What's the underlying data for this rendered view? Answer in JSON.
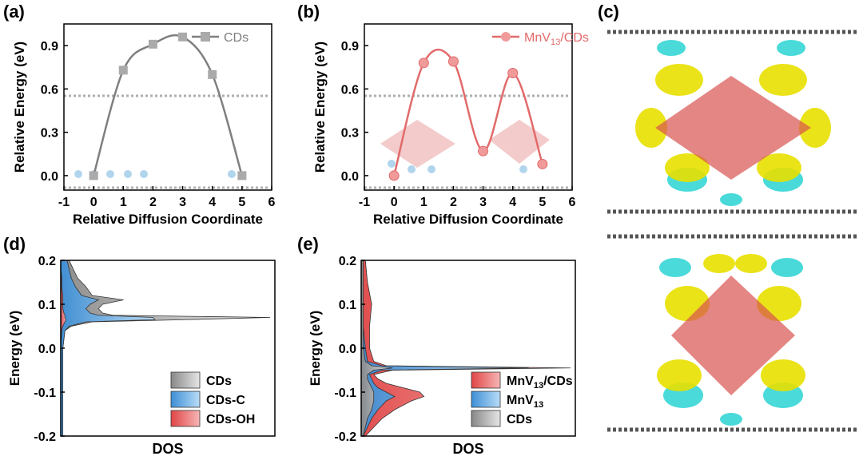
{
  "panels": [
    {
      "id": "a",
      "label": "(a)"
    },
    {
      "id": "b",
      "label": "(b)"
    },
    {
      "id": "c",
      "label": "(c)"
    },
    {
      "id": "d",
      "label": "(d)"
    },
    {
      "id": "e",
      "label": "(e)"
    }
  ],
  "colors": {
    "gray": "#7f7f7f",
    "red": "#e26a6a",
    "blue": "#5aa9e6",
    "yellow": "#e8e000",
    "cyan": "#2ad3d3"
  },
  "chart_data": [
    {
      "id": "a",
      "type": "line",
      "title": "",
      "xlabel": "Relative Diffusion Coordinate",
      "ylabel": "Relative Energy (eV)",
      "xlim": [
        -1,
        6
      ],
      "ylim": [
        -0.1,
        1.05
      ],
      "xticks": [
        -1,
        0,
        1,
        2,
        3,
        4,
        5,
        6
      ],
      "yticks": [
        0.0,
        0.3,
        0.6,
        0.9
      ],
      "ytick_labels": [
        "0.0",
        "0.3",
        "0.6",
        "0.9"
      ],
      "series": [
        {
          "name": "CDs",
          "color": "#7f7f7f",
          "marker": "square",
          "x": [
            0,
            1,
            2,
            3,
            4,
            5
          ],
          "y": [
            0.0,
            0.73,
            0.91,
            0.96,
            0.7,
            0.0
          ]
        }
      ],
      "legend": "top-right"
    },
    {
      "id": "b",
      "type": "line",
      "title": "",
      "xlabel": "Relative Diffusion Coordinate",
      "ylabel": "Relative Energy (eV)",
      "xlim": [
        -1,
        6
      ],
      "ylim": [
        -0.1,
        1.05
      ],
      "xticks": [
        -1,
        0,
        1,
        2,
        3,
        4,
        5,
        6
      ],
      "yticks": [
        0.0,
        0.3,
        0.6,
        0.9
      ],
      "ytick_labels": [
        "0.0",
        "0.3",
        "0.6",
        "0.9"
      ],
      "series": [
        {
          "name": "MnV13/CDs",
          "color": "#e26a6a",
          "marker": "circle",
          "x": [
            0,
            1,
            2,
            3,
            4,
            5
          ],
          "y": [
            0.0,
            0.78,
            0.79,
            0.17,
            0.71,
            0.08
          ]
        }
      ],
      "legend": "top-right"
    },
    {
      "id": "d",
      "type": "area",
      "xlabel": "DOS",
      "ylabel": "Energy (eV)",
      "ylim": [
        -0.2,
        0.2
      ],
      "yticks": [
        -0.2,
        -0.1,
        0.0,
        0.1,
        0.2
      ],
      "ytick_labels": [
        "-0.2",
        "-0.1",
        "0.0",
        "0.1",
        "0.2"
      ],
      "series": [
        {
          "name": "CDs",
          "color": "#aaaaaa",
          "y": [
            -0.2,
            -0.1,
            0.0,
            0.04,
            0.05,
            0.06,
            0.065,
            0.07,
            0.075,
            0.08,
            0.09,
            0.1,
            0.11,
            0.12,
            0.14,
            0.16,
            0.18,
            0.2
          ],
          "dos": [
            0.01,
            0.01,
            0.01,
            0.02,
            0.05,
            0.15,
            0.6,
            1.0,
            0.25,
            0.2,
            0.18,
            0.2,
            0.3,
            0.15,
            0.12,
            0.08,
            0.06,
            0.04
          ]
        },
        {
          "name": "CDs-C",
          "color": "#6cb4ee",
          "y": [
            -0.2,
            -0.1,
            0.0,
            0.04,
            0.05,
            0.06,
            0.065,
            0.07,
            0.075,
            0.08,
            0.09,
            0.1,
            0.11,
            0.12,
            0.14,
            0.16,
            0.18,
            0.2
          ],
          "dos": [
            0.01,
            0.01,
            0.01,
            0.02,
            0.04,
            0.12,
            0.45,
            0.44,
            0.18,
            0.14,
            0.12,
            0.14,
            0.18,
            0.1,
            0.07,
            0.05,
            0.04,
            0.03
          ]
        },
        {
          "name": "CDs-OH",
          "color": "#ee5555",
          "y": [
            -0.2,
            -0.1,
            0.0,
            0.04,
            0.05,
            0.06,
            0.065,
            0.07,
            0.075,
            0.08,
            0.09,
            0.1,
            0.11,
            0.12,
            0.14,
            0.16,
            0.18,
            0.2
          ],
          "dos": [
            0.0,
            0.0,
            0.0,
            0.005,
            0.01,
            0.02,
            0.025,
            0.02,
            0.02,
            0.015,
            0.01,
            0.01,
            0.01,
            0.01,
            0.005,
            0.005,
            0.0,
            0.0
          ]
        }
      ],
      "legend": "bottom-right"
    },
    {
      "id": "e",
      "type": "area",
      "xlabel": "DOS",
      "ylabel": "Energy (eV)",
      "ylim": [
        -0.2,
        0.2
      ],
      "yticks": [
        -0.2,
        -0.1,
        0.0,
        0.1,
        0.2
      ],
      "ytick_labels": [
        "-0.2",
        "-0.1",
        "0.0",
        "0.1",
        "0.2"
      ],
      "series": [
        {
          "name": "MnV13/CDs",
          "color": "#ee5555",
          "y": [
            -0.2,
            -0.18,
            -0.16,
            -0.14,
            -0.12,
            -0.11,
            -0.1,
            -0.09,
            -0.08,
            -0.07,
            -0.06,
            -0.05,
            -0.045,
            -0.04,
            -0.03,
            0.0,
            0.05,
            0.1,
            0.15,
            0.2
          ],
          "dos": [
            0.02,
            0.06,
            0.1,
            0.16,
            0.24,
            0.3,
            0.28,
            0.2,
            0.12,
            0.08,
            0.06,
            0.15,
            1.0,
            0.12,
            0.06,
            0.04,
            0.04,
            0.05,
            0.03,
            0.02
          ]
        },
        {
          "name": "MnV13",
          "color": "#6cb4ee",
          "y": [
            -0.2,
            -0.18,
            -0.16,
            -0.14,
            -0.12,
            -0.11,
            -0.1,
            -0.09,
            -0.08,
            -0.07,
            -0.06,
            -0.05,
            -0.045,
            -0.04,
            -0.03,
            0.0,
            0.05,
            0.1,
            0.15,
            0.2
          ],
          "dos": [
            0.01,
            0.03,
            0.05,
            0.08,
            0.12,
            0.16,
            0.12,
            0.08,
            0.06,
            0.05,
            0.04,
            0.1,
            0.8,
            0.1,
            0.03,
            0.02,
            0.01,
            0.01,
            0.01,
            0.01
          ]
        },
        {
          "name": "CDs",
          "color": "#aaaaaa",
          "y": [
            -0.2,
            -0.18,
            -0.16,
            -0.14,
            -0.12,
            -0.11,
            -0.1,
            -0.09,
            -0.08,
            -0.07,
            -0.06,
            -0.05,
            -0.045,
            -0.04,
            -0.03,
            0.0,
            0.05,
            0.1,
            0.15,
            0.2
          ],
          "dos": [
            0.01,
            0.02,
            0.03,
            0.05,
            0.06,
            0.06,
            0.06,
            0.05,
            0.04,
            0.03,
            0.03,
            0.06,
            0.15,
            0.05,
            0.02,
            0.01,
            0.01,
            0.01,
            0.01,
            0.01
          ]
        }
      ],
      "legend": "bottom-right"
    }
  ]
}
